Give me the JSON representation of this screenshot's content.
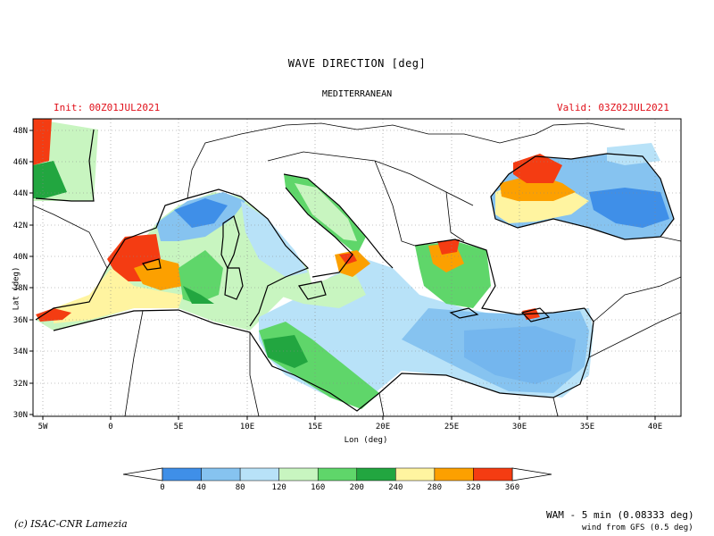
{
  "title": "WAVE DIRECTION [deg]",
  "region": "MEDITERRANEAN",
  "init": "Init: 00Z01JUL2021",
  "valid": "Valid: 03Z02JUL2021",
  "xlabel": "Lon (deg)",
  "ylabel": "Lat (deg)",
  "lon_ticks": [
    "5W",
    "0",
    "5E",
    "10E",
    "15E",
    "20E",
    "25E",
    "30E",
    "35E",
    "40E"
  ],
  "lat_ticks": [
    "48N",
    "46N",
    "44N",
    "42N",
    "40N",
    "38N",
    "36N",
    "34N",
    "32N",
    "30N"
  ],
  "colorbar": {
    "labels": [
      "0",
      "40",
      "80",
      "120",
      "160",
      "200",
      "240",
      "280",
      "320",
      "360"
    ],
    "colors": [
      "#3f8fe8",
      "#86c3f0",
      "#b8e2f8",
      "#c8f5c0",
      "#5fd66a",
      "#22a640",
      "#fff4a0",
      "#fca000",
      "#f43c12"
    ]
  },
  "credit": "(c) ISAC-CNR Lamezia",
  "model": "WAM - 5 min (0.08333 deg)",
  "wind": "wind from GFS (0.5 deg)"
}
